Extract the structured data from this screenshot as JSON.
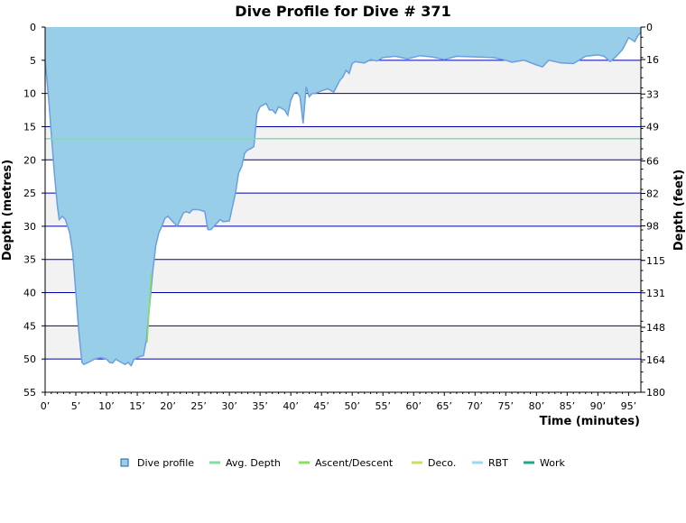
{
  "colors": {
    "profile_fill": "#99cee8",
    "profile_stroke": "#6a9fe0",
    "avg_depth_line": "#7fdfa4",
    "ascent_descent": "#88e060",
    "deco": "#c8e060",
    "rbt": "#99d8f0",
    "work": "#20a888",
    "gridline": "#0000aa",
    "band": "#f2f2f2"
  },
  "chart_data": {
    "type": "area",
    "title": "Dive Profile for Dive # 371",
    "xlabel": "Time (minutes)",
    "ylabel_left": "Depth (metres)",
    "ylabel_right": "Depth (feet)",
    "xlim": [
      0,
      97
    ],
    "ylim": [
      0,
      55
    ],
    "x_ticks": [
      "0’",
      "5’",
      "10’",
      "15’",
      "20’",
      "25’",
      "30’",
      "35’",
      "40’",
      "45’",
      "50’",
      "55’",
      "60’",
      "65’",
      "70’",
      "75’",
      "80’",
      "85’",
      "90’",
      "95’"
    ],
    "y_ticks_left": [
      "0",
      "5",
      "10",
      "15",
      "20",
      "25",
      "30",
      "35",
      "40",
      "45",
      "50",
      "55"
    ],
    "y_ticks_right": [
      "0",
      "16",
      "33",
      "49",
      "66",
      "82",
      "98",
      "115",
      "131",
      "148",
      "164",
      "180"
    ],
    "avg_depth": 16.8,
    "legend": [
      "Dive profile",
      "Avg. Depth",
      "Ascent/Descent",
      "Deco.",
      "RBT",
      "Work"
    ],
    "series": [
      {
        "name": "Dive profile",
        "x": [
          0,
          0.5,
          1,
          1.5,
          2,
          2.3,
          2.8,
          3.3,
          4,
          4.5,
          5,
          5.5,
          6,
          6.3,
          6.8,
          7.5,
          8,
          9,
          10,
          10.5,
          11,
          11.5,
          12,
          13,
          13.5,
          14,
          14.5,
          15,
          15.5,
          16,
          16.5,
          17,
          17.5,
          18,
          18.5,
          19,
          19.5,
          20,
          21,
          21.5,
          22,
          22.5,
          23,
          23.5,
          24,
          25,
          26,
          26.5,
          27,
          27.5,
          28,
          28.5,
          29,
          30,
          31,
          31.5,
          32,
          32.5,
          33,
          33.5,
          34,
          34.5,
          35,
          36,
          36.5,
          37,
          37.5,
          38,
          39,
          39.5,
          40,
          40.5,
          41,
          41.5,
          42,
          42.5,
          43,
          43.5,
          44,
          45,
          46,
          47,
          48,
          48.5,
          49,
          49.5,
          50,
          50.5,
          51,
          52,
          53,
          54,
          55,
          57,
          59,
          61,
          63,
          65,
          67,
          70,
          73,
          75,
          76,
          78,
          80,
          81,
          82,
          84,
          86,
          88,
          90,
          91,
          92,
          93,
          94,
          95,
          96,
          96.5,
          97
        ],
        "y": [
          5,
          10,
          16,
          22,
          27,
          29,
          28.5,
          29,
          31,
          34,
          40,
          46,
          50.5,
          50.8,
          50.6,
          50.3,
          50,
          49.8,
          50,
          50.5,
          50.6,
          50,
          50.3,
          50.8,
          50.5,
          51,
          50,
          49.8,
          49.6,
          49.5,
          47,
          42,
          37,
          33,
          31,
          30,
          28.8,
          28.5,
          29.5,
          30,
          29,
          28,
          27.8,
          28,
          27.5,
          27.5,
          27.8,
          30.5,
          30.5,
          30,
          29.5,
          29,
          29.3,
          29.2,
          25,
          22,
          21,
          19,
          18.5,
          18.3,
          18,
          13,
          12,
          11.5,
          12.5,
          12.5,
          13,
          12,
          12.5,
          13.3,
          11,
          10,
          9.8,
          10.5,
          14.5,
          9,
          10.5,
          10,
          10,
          9.6,
          9.3,
          9.8,
          8,
          7.5,
          6.5,
          7,
          5.5,
          5.2,
          5.3,
          5.4,
          4.9,
          5.1,
          4.6,
          4.4,
          4.8,
          4.3,
          4.5,
          4.9,
          4.4,
          4.5,
          4.6,
          5,
          5.3,
          5,
          5.7,
          6,
          5,
          5.4,
          5.5,
          4.4,
          4.2,
          4.4,
          5.2,
          4.4,
          3.4,
          1.6,
          2.2,
          1.3,
          0.8
        ]
      }
    ]
  }
}
